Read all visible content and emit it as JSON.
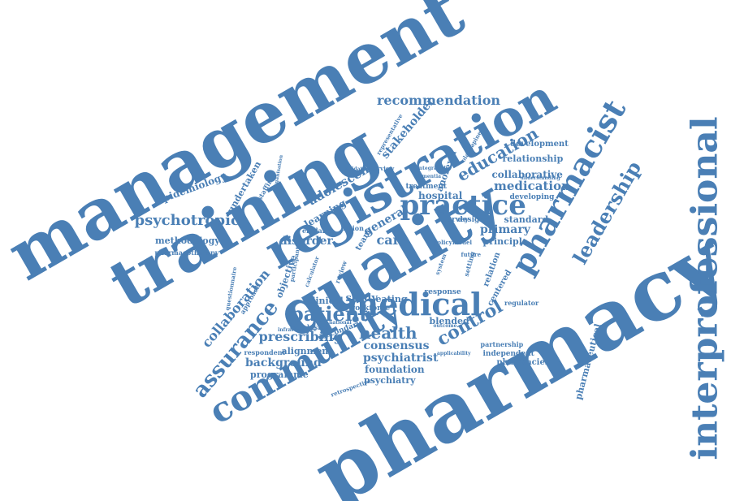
{
  "color": "#4a7fb5",
  "words": [
    "management",
    "training",
    "registration",
    "pharmacy",
    "quality",
    "interprofessional",
    "practice",
    "pharmacist",
    "community",
    "medical",
    "assurance",
    "leadership",
    "patient",
    "control",
    "education",
    "recommendation",
    "psychotropic",
    "collaboration",
    "health",
    "prescribing",
    "medication",
    "stakeholder",
    "hospital",
    "adolescent",
    "epidemiology",
    "undertaken",
    "methodology",
    "pharmacotherapy",
    "care",
    "disorder",
    "general",
    "primary",
    "principle",
    "standard",
    "collaborative",
    "relationship",
    "development",
    "developing",
    "consensus",
    "background",
    "programme",
    "psychiatrist",
    "foundation",
    "psychiatry",
    "alignment",
    "secondary",
    "clinical",
    "study",
    "eating",
    "pharmaceutical",
    "pharmacies",
    "independent",
    "partnership",
    "regulator",
    "anorexia",
    "centered",
    "blended",
    "response",
    "design",
    "survey",
    "policy",
    "model",
    "conclusion",
    "infrastructure",
    "respondent",
    "learning",
    "england",
    "objective",
    "participant",
    "approach",
    "questionnaire",
    "review",
    "interview",
    "treatment",
    "representative",
    "staffing",
    "organisation",
    "calculator",
    "action",
    "team",
    "workforce",
    "national",
    "outcome",
    "applicability",
    "retrospective",
    "olanzapine",
    "validation",
    "integrated",
    "dementia",
    "understanding",
    "relation",
    "system",
    "setting",
    "future"
  ]
}
